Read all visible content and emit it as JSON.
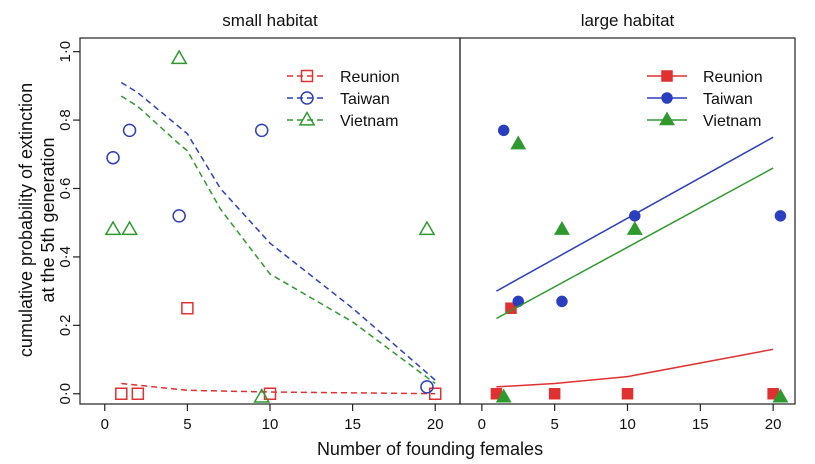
{
  "chart_data": {
    "type": "scatter",
    "xlabel": "Number of founding females",
    "ylabel_lines": [
      "cumulative probability of extinction",
      "at the 5th generation"
    ],
    "xlim": [
      -1.5,
      21.5
    ],
    "ylim": [
      -0.03,
      1.04
    ],
    "x_ticks": [
      0,
      5,
      10,
      15,
      20
    ],
    "x_tick_labels": [
      "0",
      "5",
      "10",
      "15",
      "20"
    ],
    "y_ticks": [
      0,
      0.2,
      0.4,
      0.6,
      0.8,
      1.0
    ],
    "y_tick_labels": [
      "0·0",
      "0·2",
      "0·4",
      "0·6",
      "0·8",
      "1·0"
    ],
    "colors": {
      "Reunion": "#e03030",
      "Taiwan": "#2a3fc0",
      "Vietnam": "#2e9a2e"
    },
    "panels": [
      {
        "title": "small habitat",
        "legend_position": "top-right",
        "marker_fill": "open",
        "line_style": "dashed",
        "series": [
          {
            "name": "Reunion",
            "marker": "square",
            "points": [
              [
                1,
                0.0
              ],
              [
                2,
                0.0
              ],
              [
                5,
                0.25
              ],
              [
                10,
                0.0
              ],
              [
                20,
                0.0
              ]
            ],
            "fit": [
              [
                1,
                0.03
              ],
              [
                5,
                0.01
              ],
              [
                10,
                0.005
              ],
              [
                20,
                0.0
              ]
            ]
          },
          {
            "name": "Taiwan",
            "marker": "circle",
            "points": [
              [
                0.5,
                0.69
              ],
              [
                1.5,
                0.77
              ],
              [
                4.5,
                0.52
              ],
              [
                9.5,
                0.77
              ],
              [
                19.5,
                0.02
              ]
            ],
            "fit": [
              [
                1,
                0.91
              ],
              [
                2,
                0.88
              ],
              [
                4.5,
                0.78
              ],
              [
                5,
                0.76
              ],
              [
                7,
                0.6
              ],
              [
                10,
                0.44
              ],
              [
                15,
                0.25
              ],
              [
                20,
                0.04
              ]
            ]
          },
          {
            "name": "Vietnam",
            "marker": "triangle",
            "points": [
              [
                0.5,
                0.48
              ],
              [
                1.5,
                0.48
              ],
              [
                4.5,
                0.98
              ],
              [
                9.5,
                -0.01
              ],
              [
                19.5,
                0.48
              ]
            ],
            "fit": [
              [
                1,
                0.87
              ],
              [
                2,
                0.84
              ],
              [
                4.5,
                0.73
              ],
              [
                5,
                0.71
              ],
              [
                7,
                0.54
              ],
              [
                10,
                0.35
              ],
              [
                15,
                0.21
              ],
              [
                20,
                0.03
              ]
            ]
          }
        ]
      },
      {
        "title": "large habitat",
        "legend_position": "top-right",
        "marker_fill": "filled",
        "line_style": "solid",
        "series": [
          {
            "name": "Reunion",
            "marker": "square",
            "points": [
              [
                1,
                0.0
              ],
              [
                2,
                0.25
              ],
              [
                5,
                0.0
              ],
              [
                10,
                0.0
              ],
              [
                20,
                0.0
              ]
            ],
            "fit": [
              [
                1,
                0.02
              ],
              [
                5,
                0.03
              ],
              [
                10,
                0.05
              ],
              [
                15,
                0.09
              ],
              [
                20,
                0.13
              ]
            ]
          },
          {
            "name": "Taiwan",
            "marker": "circle",
            "points": [
              [
                1.5,
                0.77
              ],
              [
                2.5,
                0.27
              ],
              [
                5.5,
                0.27
              ],
              [
                10.5,
                0.52
              ],
              [
                20.5,
                0.52
              ]
            ],
            "fit": [
              [
                1,
                0.3
              ],
              [
                20,
                0.75
              ]
            ]
          },
          {
            "name": "Vietnam",
            "marker": "triangle",
            "points": [
              [
                1.5,
                -0.01
              ],
              [
                2.5,
                0.73
              ],
              [
                5.5,
                0.48
              ],
              [
                10.5,
                0.48
              ],
              [
                20.5,
                -0.01
              ]
            ],
            "fit": [
              [
                1,
                0.22
              ],
              [
                20,
                0.66
              ]
            ]
          }
        ]
      }
    ]
  }
}
